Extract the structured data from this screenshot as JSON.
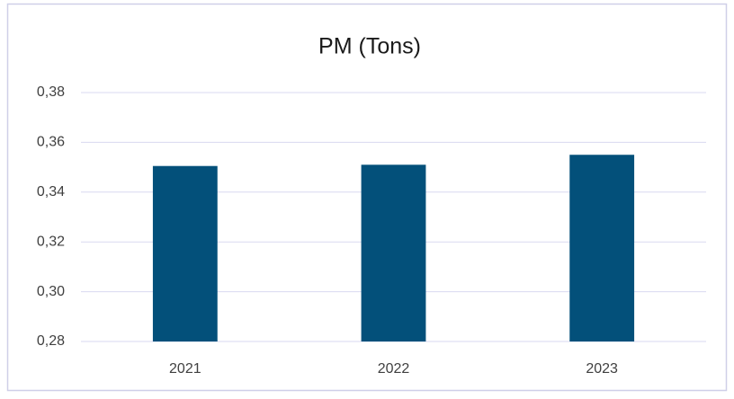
{
  "chart_data": {
    "type": "bar",
    "title": "PM (Tons)",
    "categories": [
      "2021",
      "2022",
      "2023"
    ],
    "values": [
      0.3505,
      0.351,
      0.355
    ],
    "color": "#03507a",
    "ylim": [
      0.28,
      0.38
    ],
    "yticks": [
      {
        "value": 0.28,
        "label": "0,28"
      },
      {
        "value": 0.3,
        "label": "0,30"
      },
      {
        "value": 0.32,
        "label": "0,32"
      },
      {
        "value": 0.34,
        "label": "0,34"
      },
      {
        "value": 0.36,
        "label": "0,36"
      },
      {
        "value": 0.38,
        "label": "0,38"
      }
    ],
    "grid": true
  }
}
